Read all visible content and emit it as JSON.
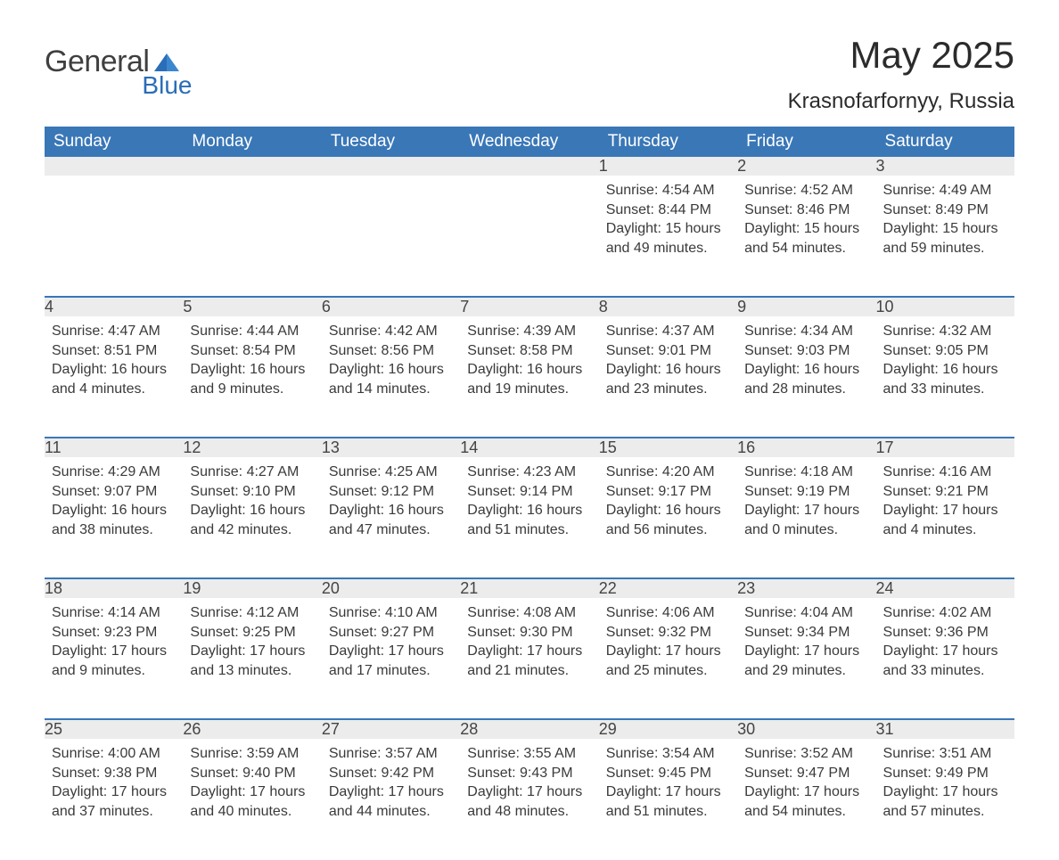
{
  "logo": {
    "general": "General",
    "blue": "Blue"
  },
  "title": "May 2025",
  "subtitle": "Krasnofarfornyy, Russia",
  "colors": {
    "header_bg": "#3a77b7",
    "header_text": "#ffffff",
    "daynum_bg": "#ececec",
    "row_border": "#3a77b7",
    "body_text": "#3a3a3a",
    "logo_blue": "#2a6db8",
    "page_bg": "#ffffff"
  },
  "typography": {
    "title_fontsize": 42,
    "subtitle_fontsize": 24,
    "header_fontsize": 19,
    "daynum_fontsize": 18,
    "cell_fontsize": 16,
    "font_family": "Arial"
  },
  "labels": {
    "sunrise": "Sunrise:",
    "sunset": "Sunset:",
    "daylight": "Daylight:"
  },
  "dayHeaders": [
    "Sunday",
    "Monday",
    "Tuesday",
    "Wednesday",
    "Thursday",
    "Friday",
    "Saturday"
  ],
  "weeks": [
    [
      null,
      null,
      null,
      null,
      {
        "n": "1",
        "sunrise": "4:54 AM",
        "sunset": "8:44 PM",
        "daylight": "15 hours and 49 minutes."
      },
      {
        "n": "2",
        "sunrise": "4:52 AM",
        "sunset": "8:46 PM",
        "daylight": "15 hours and 54 minutes."
      },
      {
        "n": "3",
        "sunrise": "4:49 AM",
        "sunset": "8:49 PM",
        "daylight": "15 hours and 59 minutes."
      }
    ],
    [
      {
        "n": "4",
        "sunrise": "4:47 AM",
        "sunset": "8:51 PM",
        "daylight": "16 hours and 4 minutes."
      },
      {
        "n": "5",
        "sunrise": "4:44 AM",
        "sunset": "8:54 PM",
        "daylight": "16 hours and 9 minutes."
      },
      {
        "n": "6",
        "sunrise": "4:42 AM",
        "sunset": "8:56 PM",
        "daylight": "16 hours and 14 minutes."
      },
      {
        "n": "7",
        "sunrise": "4:39 AM",
        "sunset": "8:58 PM",
        "daylight": "16 hours and 19 minutes."
      },
      {
        "n": "8",
        "sunrise": "4:37 AM",
        "sunset": "9:01 PM",
        "daylight": "16 hours and 23 minutes."
      },
      {
        "n": "9",
        "sunrise": "4:34 AM",
        "sunset": "9:03 PM",
        "daylight": "16 hours and 28 minutes."
      },
      {
        "n": "10",
        "sunrise": "4:32 AM",
        "sunset": "9:05 PM",
        "daylight": "16 hours and 33 minutes."
      }
    ],
    [
      {
        "n": "11",
        "sunrise": "4:29 AM",
        "sunset": "9:07 PM",
        "daylight": "16 hours and 38 minutes."
      },
      {
        "n": "12",
        "sunrise": "4:27 AM",
        "sunset": "9:10 PM",
        "daylight": "16 hours and 42 minutes."
      },
      {
        "n": "13",
        "sunrise": "4:25 AM",
        "sunset": "9:12 PM",
        "daylight": "16 hours and 47 minutes."
      },
      {
        "n": "14",
        "sunrise": "4:23 AM",
        "sunset": "9:14 PM",
        "daylight": "16 hours and 51 minutes."
      },
      {
        "n": "15",
        "sunrise": "4:20 AM",
        "sunset": "9:17 PM",
        "daylight": "16 hours and 56 minutes."
      },
      {
        "n": "16",
        "sunrise": "4:18 AM",
        "sunset": "9:19 PM",
        "daylight": "17 hours and 0 minutes."
      },
      {
        "n": "17",
        "sunrise": "4:16 AM",
        "sunset": "9:21 PM",
        "daylight": "17 hours and 4 minutes."
      }
    ],
    [
      {
        "n": "18",
        "sunrise": "4:14 AM",
        "sunset": "9:23 PM",
        "daylight": "17 hours and 9 minutes."
      },
      {
        "n": "19",
        "sunrise": "4:12 AM",
        "sunset": "9:25 PM",
        "daylight": "17 hours and 13 minutes."
      },
      {
        "n": "20",
        "sunrise": "4:10 AM",
        "sunset": "9:27 PM",
        "daylight": "17 hours and 17 minutes."
      },
      {
        "n": "21",
        "sunrise": "4:08 AM",
        "sunset": "9:30 PM",
        "daylight": "17 hours and 21 minutes."
      },
      {
        "n": "22",
        "sunrise": "4:06 AM",
        "sunset": "9:32 PM",
        "daylight": "17 hours and 25 minutes."
      },
      {
        "n": "23",
        "sunrise": "4:04 AM",
        "sunset": "9:34 PM",
        "daylight": "17 hours and 29 minutes."
      },
      {
        "n": "24",
        "sunrise": "4:02 AM",
        "sunset": "9:36 PM",
        "daylight": "17 hours and 33 minutes."
      }
    ],
    [
      {
        "n": "25",
        "sunrise": "4:00 AM",
        "sunset": "9:38 PM",
        "daylight": "17 hours and 37 minutes."
      },
      {
        "n": "26",
        "sunrise": "3:59 AM",
        "sunset": "9:40 PM",
        "daylight": "17 hours and 40 minutes."
      },
      {
        "n": "27",
        "sunrise": "3:57 AM",
        "sunset": "9:42 PM",
        "daylight": "17 hours and 44 minutes."
      },
      {
        "n": "28",
        "sunrise": "3:55 AM",
        "sunset": "9:43 PM",
        "daylight": "17 hours and 48 minutes."
      },
      {
        "n": "29",
        "sunrise": "3:54 AM",
        "sunset": "9:45 PM",
        "daylight": "17 hours and 51 minutes."
      },
      {
        "n": "30",
        "sunrise": "3:52 AM",
        "sunset": "9:47 PM",
        "daylight": "17 hours and 54 minutes."
      },
      {
        "n": "31",
        "sunrise": "3:51 AM",
        "sunset": "9:49 PM",
        "daylight": "17 hours and 57 minutes."
      }
    ]
  ]
}
